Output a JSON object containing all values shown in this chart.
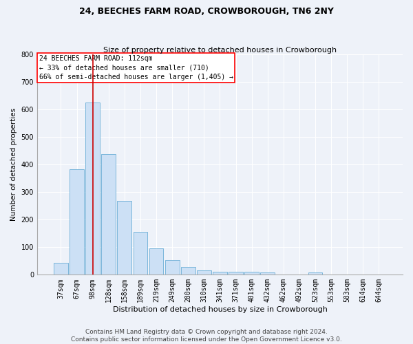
{
  "title": "24, BEECHES FARM ROAD, CROWBOROUGH, TN6 2NY",
  "subtitle": "Size of property relative to detached houses in Crowborough",
  "xlabel": "Distribution of detached houses by size in Crowborough",
  "ylabel": "Number of detached properties",
  "footer_line1": "Contains HM Land Registry data © Crown copyright and database right 2024.",
  "footer_line2": "Contains public sector information licensed under the Open Government Licence v3.0.",
  "annotation_line1": "24 BEECHES FARM ROAD: 112sqm",
  "annotation_line2": "← 33% of detached houses are smaller (710)",
  "annotation_line3": "66% of semi-detached houses are larger (1,405) →",
  "bar_color": "#cce0f5",
  "bar_edge_color": "#6baed6",
  "red_line_x": 2,
  "red_line_color": "#cc0000",
  "categories": [
    "37sqm",
    "67sqm",
    "98sqm",
    "128sqm",
    "158sqm",
    "189sqm",
    "219sqm",
    "249sqm",
    "280sqm",
    "310sqm",
    "341sqm",
    "371sqm",
    "401sqm",
    "432sqm",
    "462sqm",
    "492sqm",
    "523sqm",
    "553sqm",
    "583sqm",
    "614sqm",
    "644sqm"
  ],
  "values": [
    43,
    383,
    625,
    437,
    268,
    155,
    96,
    52,
    28,
    17,
    11,
    11,
    11,
    8,
    0,
    0,
    8,
    0,
    0,
    0,
    0
  ],
  "ylim": [
    0,
    800
  ],
  "yticks": [
    0,
    100,
    200,
    300,
    400,
    500,
    600,
    700,
    800
  ],
  "background_color": "#eef2f9",
  "grid_color": "#ffffff",
  "title_fontsize": 9,
  "subtitle_fontsize": 8,
  "xlabel_fontsize": 8,
  "ylabel_fontsize": 7.5,
  "tick_fontsize": 7,
  "annotation_fontsize": 7,
  "footer_fontsize": 6.5
}
